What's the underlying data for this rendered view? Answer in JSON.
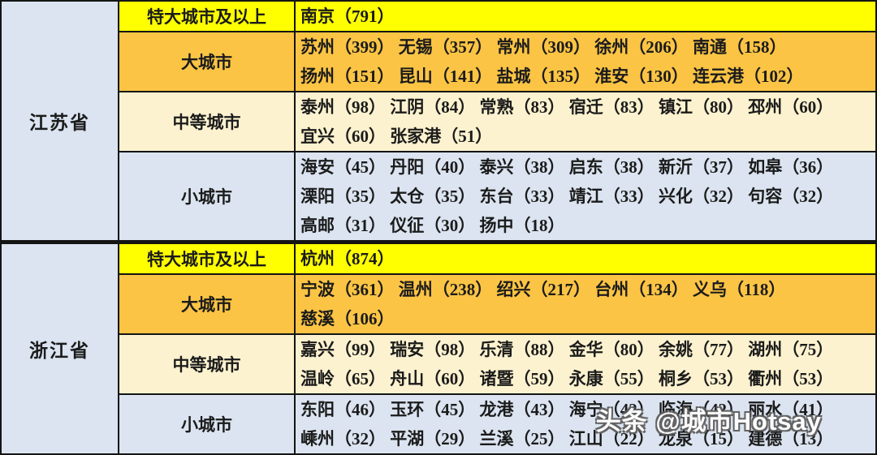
{
  "colors": {
    "tier_mega_bg": "#ffff00",
    "tier_large_bg": "#fbc444",
    "tier_medium_bg": "#fcf2cf",
    "tier_small_bg": "#dbe4f0",
    "border": "#141414",
    "text": "#1b1b1b",
    "watermark_text": "#ffffff"
  },
  "watermark": {
    "text": "头条 @城市Hotsay"
  },
  "provinces": [
    {
      "name": "江苏省",
      "rows": [
        {
          "category": "特大城市及以上",
          "lines": [
            "南京（791）"
          ]
        },
        {
          "category": "大城市",
          "lines": [
            "苏州（399） 无锡（357） 常州（309） 徐州（206） 南通（158）",
            "扬州（151） 昆山（141） 盐城（135） 淮安（130） 连云港（102）"
          ]
        },
        {
          "category": "中等城市",
          "lines": [
            "泰州（98） 江阴（84） 常熟（83） 宿迁（83） 镇江（80） 邳州（60）",
            "宜兴（60） 张家港（51）"
          ]
        },
        {
          "category": "小城市",
          "lines": [
            "海安（45） 丹阳（40） 泰兴（38） 启东（38） 新沂（37） 如皋（36）",
            "溧阳（35） 太仓（35） 东台（33） 靖江（33） 兴化（32） 句容（32）",
            "高邮（31） 仪征（30） 扬中（18）"
          ]
        }
      ]
    },
    {
      "name": "浙江省",
      "rows": [
        {
          "category": "特大城市及以上",
          "lines": [
            "杭州（874）"
          ]
        },
        {
          "category": "大城市",
          "lines": [
            "宁波（361） 温州（238） 绍兴（217） 台州（134） 义乌（118）",
            "慈溪（106）"
          ]
        },
        {
          "category": "中等城市",
          "lines": [
            "嘉兴（99） 瑞安（98） 乐清（88） 金华（80） 余姚（77） 湖州（75）",
            "温岭（65） 舟山（60） 诸暨（59） 永康（55） 桐乡（53） 衢州（53）"
          ]
        },
        {
          "category": "小城市",
          "lines": [
            "东阳（46） 玉环（45） 龙港（43） 海宁（42） 临海（42） 丽水（41）",
            "嵊州（32） 平湖（29） 兰溪（25） 江山（22） 龙泉（15） 建德（13）"
          ]
        }
      ]
    }
  ]
}
